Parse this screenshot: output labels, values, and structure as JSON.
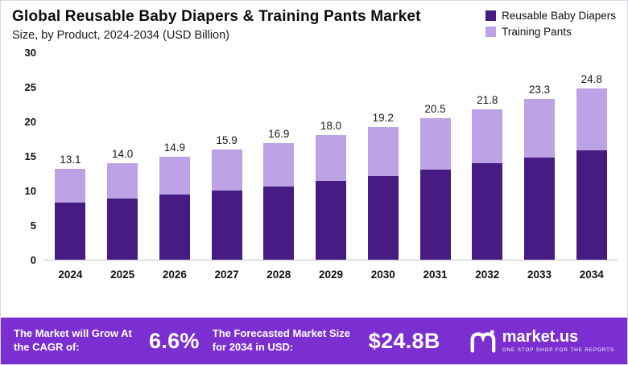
{
  "header": {
    "title": "Global Reusable Baby Diapers & Training Pants Market",
    "subtitle": "Size, by Product, 2024-2034 (USD Billion)"
  },
  "legend": [
    {
      "label": "Reusable Baby Diapers",
      "color": "#471c82"
    },
    {
      "label": "Training Pants",
      "color": "#bda2e6"
    }
  ],
  "chart_data": {
    "type": "bar",
    "stacked": true,
    "title": "Global Reusable Baby Diapers & Training Pants Market Size, by Product, 2024-2034 (USD Billion)",
    "categories": [
      "2024",
      "2025",
      "2026",
      "2027",
      "2028",
      "2029",
      "2030",
      "2031",
      "2032",
      "2033",
      "2034"
    ],
    "series": [
      {
        "name": "Reusable Baby Diapers",
        "color": "#471c82",
        "values": [
          8.2,
          8.8,
          9.4,
          10.0,
          10.6,
          11.4,
          12.1,
          13.0,
          13.9,
          14.8,
          15.8
        ]
      },
      {
        "name": "Training Pants",
        "color": "#bda2e6",
        "values": [
          4.9,
          5.2,
          5.5,
          5.9,
          6.3,
          6.6,
          7.1,
          7.5,
          7.9,
          8.5,
          9.0
        ]
      }
    ],
    "totals": [
      13.1,
      14.0,
      14.9,
      15.9,
      16.9,
      18.0,
      19.2,
      20.5,
      21.8,
      23.3,
      24.8
    ],
    "xlabel": "",
    "ylabel": "",
    "ylim": [
      0,
      30
    ],
    "yticks": [
      0,
      5,
      10,
      15,
      20,
      25,
      30
    ],
    "grid": false,
    "legend_position": "top-right"
  },
  "banner": {
    "cagr_label": "The Market will Grow At the CAGR of:",
    "cagr_value": "6.6%",
    "forecast_label": "The Forecasted Market Size for 2034 in USD:",
    "forecast_value": "$24.8B",
    "brand": "market.us",
    "brand_tagline": "ONE STOP SHOP FOR THE REPORTS"
  },
  "colors": {
    "diapers": "#471c82",
    "training_pants": "#bda2e6",
    "banner_background": "#7c2fd0",
    "text": "#111111"
  }
}
